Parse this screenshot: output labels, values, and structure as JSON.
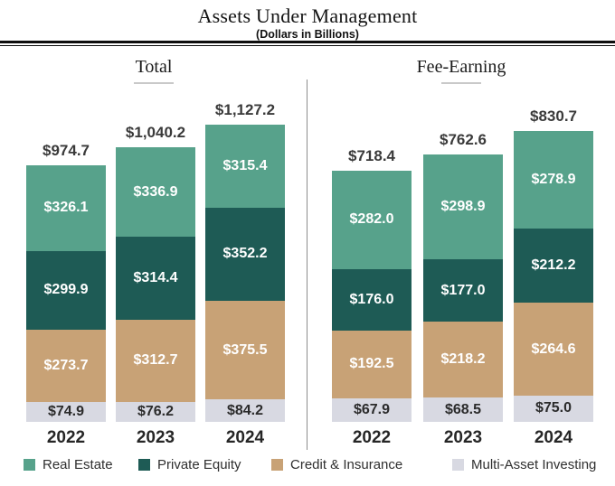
{
  "header": {
    "title": "Assets Under Management",
    "subtitle": "(Dollars in Billions)"
  },
  "chart_data": {
    "type": "bar",
    "stacked": true,
    "value_prefix": "$",
    "grid": false,
    "legend_position": "bottom",
    "categories": [
      "2022",
      "2023",
      "2024"
    ],
    "colors": {
      "Real Estate": "#57a28b",
      "Private Equity": "#1e5b55",
      "Credit & Insurance": "#c8a276",
      "Multi-Asset Investing": "#d8d9e2"
    },
    "panels": [
      {
        "title": "Total",
        "totals": [
          974.7,
          1040.2,
          1127.2
        ],
        "series": [
          {
            "name": "Real Estate",
            "values": [
              326.1,
              336.9,
              315.4
            ]
          },
          {
            "name": "Private Equity",
            "values": [
              299.9,
              314.4,
              352.2
            ]
          },
          {
            "name": "Credit & Insurance",
            "values": [
              273.7,
              312.7,
              375.5
            ]
          },
          {
            "name": "Multi-Asset Investing",
            "values": [
              74.9,
              76.2,
              84.2
            ]
          }
        ]
      },
      {
        "title": "Fee-Earning",
        "totals": [
          718.4,
          762.6,
          830.7
        ],
        "series": [
          {
            "name": "Real Estate",
            "values": [
              282.0,
              298.9,
              278.9
            ]
          },
          {
            "name": "Private Equity",
            "values": [
              176.0,
              177.0,
              212.2
            ]
          },
          {
            "name": "Credit & Insurance",
            "values": [
              192.5,
              218.2,
              264.6
            ]
          },
          {
            "name": "Multi-Asset Investing",
            "values": [
              67.9,
              68.5,
              75.0
            ]
          }
        ]
      }
    ]
  },
  "legend": {
    "items": [
      {
        "label": "Real Estate",
        "color": "#57a28b"
      },
      {
        "label": "Private Equity",
        "color": "#1e5b55"
      },
      {
        "label": "Credit & Insurance",
        "color": "#c8a276"
      },
      {
        "label": "Multi-Asset Investing",
        "color": "#d8d9e2"
      }
    ]
  }
}
